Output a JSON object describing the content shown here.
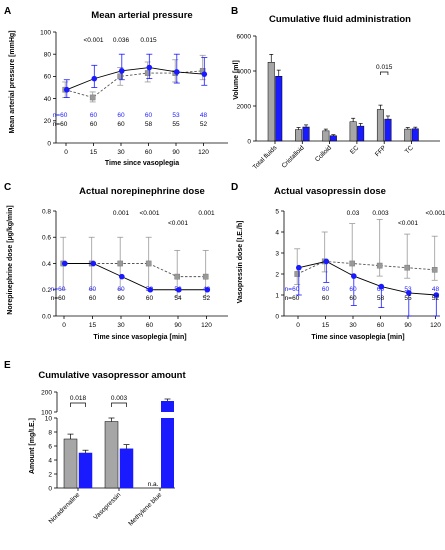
{
  "chart_data": [
    {
      "id": "A",
      "type": "line",
      "panel_letter": "A",
      "title": "Mean arterial pressure",
      "xlabel": "Time since vasoplegia",
      "ylabel": "Mean arterial pressure [mmHg]",
      "x": [
        0,
        15,
        30,
        60,
        90,
        120
      ],
      "ylim": [
        0,
        100
      ],
      "yticks": [
        0,
        20,
        40,
        60,
        80,
        100
      ],
      "series": [
        {
          "color": "#1a1aff",
          "values": [
            48,
            58,
            65,
            68,
            64,
            62
          ],
          "err_up": [
            9,
            12,
            15,
            12,
            16,
            15
          ],
          "err_dn": [
            7,
            8,
            8,
            10,
            10,
            10
          ],
          "marker": "circle",
          "line": "solid"
        },
        {
          "color": "#999999",
          "values": [
            48,
            41,
            60,
            63,
            63,
            65
          ],
          "err_up": [
            7,
            5,
            8,
            10,
            12,
            14
          ],
          "err_dn": [
            7,
            4,
            8,
            8,
            8,
            8
          ],
          "marker": "square",
          "line": "dashed"
        }
      ],
      "pvalues": [
        {
          "x": 15,
          "text": "<0.001"
        },
        {
          "x": 30,
          "text": "0.036"
        },
        {
          "x": 60,
          "text": "0.015"
        }
      ],
      "n_rows": [
        {
          "color": "#1a1aff",
          "values": [
            "n=60",
            "60",
            "60",
            "60",
            "53",
            "48"
          ]
        },
        {
          "color": "#000000",
          "values": [
            "n=60",
            "60",
            "60",
            "58",
            "55",
            "52"
          ]
        }
      ]
    },
    {
      "id": "B",
      "type": "bar",
      "panel_letter": "B",
      "title": "Cumulative fluid administration",
      "ylabel": "Volume [ml]",
      "categories": [
        "Total fluids",
        "Cristalloid",
        "Colloid",
        "EC",
        "FFP",
        "TC"
      ],
      "ylim": [
        0,
        6000
      ],
      "yticks": [
        0,
        2000,
        4000,
        6000
      ],
      "series": [
        {
          "color": "#a6a6a6",
          "values": [
            4500,
            650,
            580,
            1100,
            1800,
            680
          ],
          "err": [
            450,
            120,
            100,
            200,
            250,
            90
          ]
        },
        {
          "color": "#1a1aff",
          "values": [
            3700,
            800,
            300,
            850,
            1250,
            700
          ],
          "err": [
            350,
            120,
            60,
            150,
            180,
            90
          ]
        }
      ],
      "pvalues": [
        {
          "cat": 4,
          "text": "0.015"
        }
      ]
    },
    {
      "id": "C",
      "type": "line",
      "panel_letter": "C",
      "title": "Actual norepinephrine dose",
      "xlabel": "Time since vasoplegia [min]",
      "ylabel": "Norepinephrine dose [µg/kg/min]",
      "x": [
        0,
        15,
        30,
        60,
        90,
        120
      ],
      "ylim": [
        0,
        0.8
      ],
      "yticks": [
        0.0,
        0.2,
        0.4,
        0.6,
        0.8
      ],
      "series": [
        {
          "color": "#1a1aff",
          "values": [
            0.4,
            0.4,
            0.3,
            0.2,
            0.2,
            0.2
          ],
          "err_up": [
            0,
            0,
            0,
            0,
            0,
            0
          ],
          "err_dn": [
            0,
            0,
            0,
            0,
            0,
            0
          ],
          "marker": "circle",
          "line": "solid"
        },
        {
          "color": "#999999",
          "values": [
            0.4,
            0.4,
            0.4,
            0.4,
            0.3,
            0.3
          ],
          "err_up": [
            0.2,
            0.2,
            0.2,
            0.2,
            0.2,
            0.2
          ],
          "err_dn": [
            0.2,
            0.2,
            0.2,
            0.2,
            0.15,
            0.15
          ],
          "marker": "square",
          "line": "dashed"
        }
      ],
      "pvalues": [
        {
          "x": 30,
          "text": "0.001",
          "row": 0
        },
        {
          "x": 60,
          "text": "<0.001",
          "row": 0
        },
        {
          "x": 120,
          "text": "0.001",
          "row": 0
        },
        {
          "x": 90,
          "text": "<0.001",
          "row": 1
        }
      ],
      "n_rows": [
        {
          "color": "#1a1aff",
          "values": [
            "n=60",
            "60",
            "60",
            "58",
            "52",
            "48"
          ]
        },
        {
          "color": "#000000",
          "values": [
            "n=60",
            "60",
            "60",
            "60",
            "54",
            "52"
          ]
        }
      ]
    },
    {
      "id": "D",
      "type": "line",
      "panel_letter": "D",
      "title": "Actual vasopressin dose",
      "xlabel": "Time since vasoplegia [min]",
      "ylabel": "Vasopressin dose [I.E./h]",
      "x": [
        0,
        15,
        30,
        60,
        90,
        120
      ],
      "ylim": [
        0,
        5
      ],
      "yticks": [
        0,
        1,
        2,
        3,
        4,
        5
      ],
      "series": [
        {
          "color": "#1a1aff",
          "values": [
            2.3,
            2.6,
            1.9,
            1.4,
            1.1,
            1.0
          ],
          "err_up": [
            0,
            0,
            0,
            0,
            0,
            0
          ],
          "err_dn": [
            1.3,
            1.0,
            1.4,
            1.0,
            1.1,
            1.0
          ],
          "marker": "circle",
          "line": "solid"
        },
        {
          "color": "#999999",
          "values": [
            2.0,
            2.6,
            2.5,
            2.4,
            2.3,
            2.2
          ],
          "err_up": [
            1.2,
            1.4,
            1.9,
            2.2,
            1.6,
            1.6
          ],
          "err_dn": [
            0.5,
            0.5,
            0.5,
            0.5,
            0.5,
            0.5
          ],
          "marker": "square",
          "line": "dashed"
        }
      ],
      "pvalues": [
        {
          "x": 30,
          "text": "0.03",
          "row": 0
        },
        {
          "x": 60,
          "text": "0.003",
          "row": 0
        },
        {
          "x": 120,
          "text": "<0.001",
          "row": 0
        },
        {
          "x": 90,
          "text": "<0.001",
          "row": 1
        }
      ],
      "n_rows": [
        {
          "color": "#1a1aff",
          "values": [
            "n=60",
            "60",
            "60",
            "60",
            "53",
            "48"
          ]
        },
        {
          "color": "#000000",
          "values": [
            "n=60",
            "60",
            "60",
            "58",
            "55",
            "52"
          ]
        }
      ]
    },
    {
      "id": "E",
      "type": "bar",
      "panel_letter": "E",
      "title": "Cumulative vasopressor amount",
      "ylabel": "Amount [mg/I.E.]",
      "categories": [
        "Noradrenaline",
        "Vasopressin",
        "Methylene blue"
      ],
      "ylim_low": [
        0,
        10
      ],
      "ylim_high": [
        100,
        200
      ],
      "yticks_low": [
        0,
        2,
        4,
        6,
        8,
        10
      ],
      "yticks_high": [
        100,
        200
      ],
      "series": [
        {
          "color": "#a6a6a6",
          "values": [
            7.0,
            9.5,
            null
          ],
          "err": [
            0.7,
            0.5,
            null
          ]
        },
        {
          "color": "#1a1aff",
          "values": [
            5.0,
            5.6,
            155
          ],
          "err": [
            0.4,
            0.6,
            10
          ]
        }
      ],
      "pvalues": [
        {
          "cat": 0,
          "text": "0.018"
        },
        {
          "cat": 1,
          "text": "0.003"
        }
      ],
      "missing_label": "n.a."
    }
  ]
}
